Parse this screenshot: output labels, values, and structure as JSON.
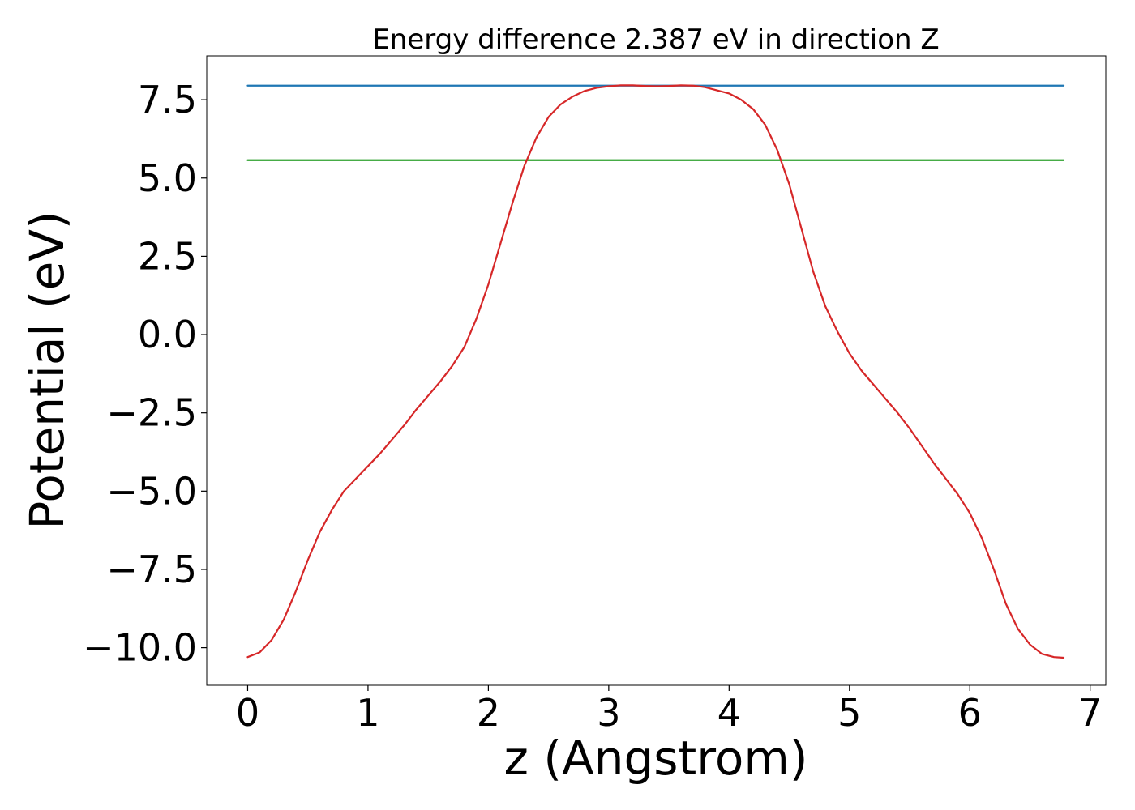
{
  "chart_data": {
    "type": "line",
    "title": "Energy difference 2.387 eV in direction Z",
    "xlabel": "z (Angstrom)",
    "ylabel": "Potential (eV)",
    "xlim": [
      -0.34,
      7.13
    ],
    "ylim": [
      -11.2,
      8.9
    ],
    "x_ticks": [
      0,
      1,
      2,
      3,
      4,
      5,
      6,
      7
    ],
    "x_tick_labels": [
      "0",
      "1",
      "2",
      "3",
      "4",
      "5",
      "6",
      "7"
    ],
    "y_ticks": [
      -10.0,
      -7.5,
      -5.0,
      -2.5,
      0.0,
      2.5,
      5.0,
      7.5
    ],
    "y_tick_labels": [
      "−10.0",
      "−7.5",
      "−5.0",
      "−2.5",
      "0.0",
      "2.5",
      "5.0",
      "7.5"
    ],
    "grid": false,
    "series": [
      {
        "color": "#1f77b4",
        "x": [
          0,
          6.78
        ],
        "y": [
          7.95,
          7.95
        ]
      },
      {
        "color": "#2ca02c",
        "x": [
          0,
          6.78
        ],
        "y": [
          5.57,
          5.57
        ]
      },
      {
        "color": "#d62728",
        "x": [
          0,
          0.1,
          0.2,
          0.3,
          0.4,
          0.5,
          0.6,
          0.7,
          0.8,
          0.9,
          1.0,
          1.1,
          1.2,
          1.3,
          1.4,
          1.5,
          1.6,
          1.7,
          1.8,
          1.9,
          2.0,
          2.1,
          2.2,
          2.3,
          2.4,
          2.5,
          2.6,
          2.7,
          2.8,
          2.9,
          3.0,
          3.1,
          3.2,
          3.3,
          3.4,
          3.5,
          3.6,
          3.7,
          3.8,
          3.9,
          4.0,
          4.1,
          4.2,
          4.3,
          4.4,
          4.5,
          4.6,
          4.7,
          4.8,
          4.9,
          5.0,
          5.1,
          5.2,
          5.3,
          5.4,
          5.5,
          5.6,
          5.7,
          5.8,
          5.9,
          6.0,
          6.1,
          6.2,
          6.3,
          6.4,
          6.5,
          6.6,
          6.7,
          6.78
        ],
        "y": [
          -10.3,
          -10.15,
          -9.75,
          -9.1,
          -8.2,
          -7.2,
          -6.3,
          -5.6,
          -5.0,
          -4.6,
          -4.2,
          -3.8,
          -3.35,
          -2.9,
          -2.4,
          -1.95,
          -1.5,
          -1.0,
          -0.4,
          0.5,
          1.6,
          2.9,
          4.2,
          5.4,
          6.3,
          6.95,
          7.35,
          7.6,
          7.78,
          7.88,
          7.93,
          7.96,
          7.96,
          7.94,
          7.93,
          7.94,
          7.96,
          7.95,
          7.9,
          7.8,
          7.7,
          7.5,
          7.2,
          6.7,
          5.9,
          4.8,
          3.4,
          2.0,
          0.9,
          0.1,
          -0.6,
          -1.15,
          -1.6,
          -2.05,
          -2.5,
          -3.0,
          -3.55,
          -4.1,
          -4.6,
          -5.1,
          -5.7,
          -6.5,
          -7.5,
          -8.6,
          -9.4,
          -9.9,
          -10.2,
          -10.3,
          -10.32
        ]
      }
    ]
  }
}
